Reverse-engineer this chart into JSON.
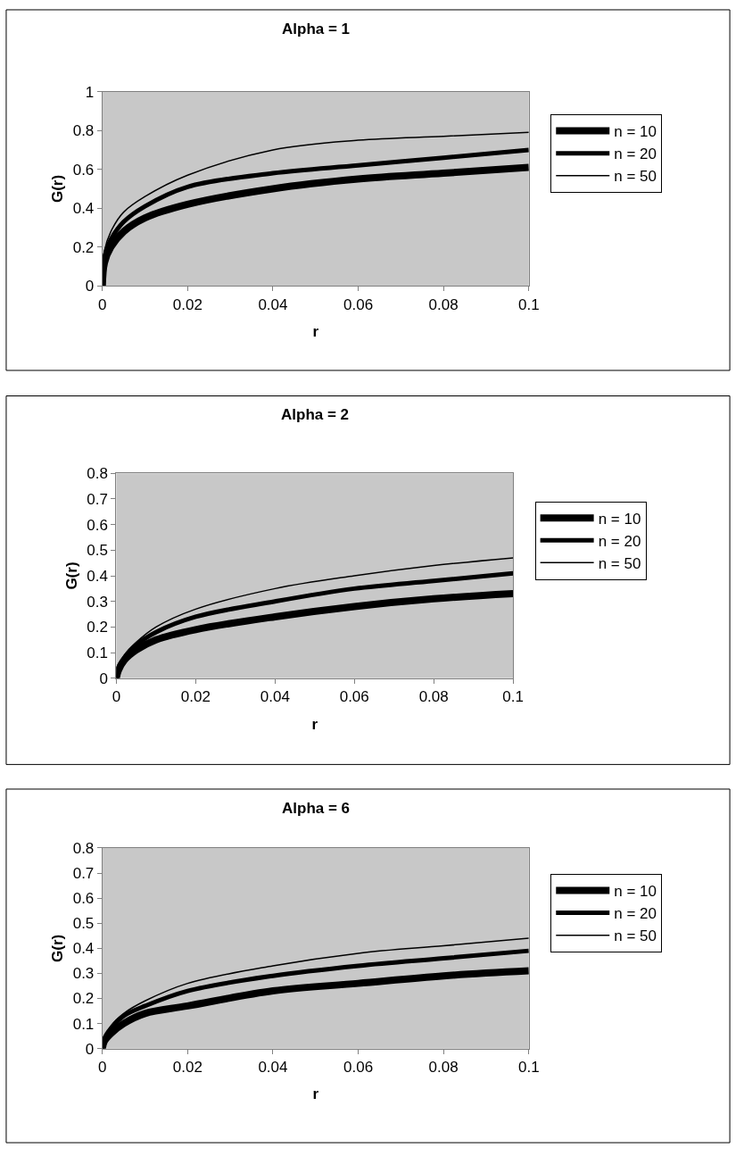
{
  "chart_data": [
    {
      "type": "line",
      "title": "Alpha = 1",
      "xlabel": "r",
      "ylabel": "G(r)",
      "x": [
        0,
        0.0005,
        0.002,
        0.005,
        0.01,
        0.02,
        0.04,
        0.06,
        0.08,
        0.1
      ],
      "xlim": [
        0,
        0.1
      ],
      "xticks": [
        0,
        0.02,
        0.04,
        0.06,
        0.08,
        0.1
      ],
      "ylim": [
        0,
        1
      ],
      "yticks": [
        0,
        0.2,
        0.4,
        0.6,
        0.8,
        1
      ],
      "grid": false,
      "legend": "right",
      "marker": "none",
      "line_style": "solid",
      "series": [
        {
          "name": "n = 10",
          "color": "#000000",
          "values": [
            0,
            0.12,
            0.2,
            0.28,
            0.35,
            0.42,
            0.5,
            0.55,
            0.58,
            0.61
          ]
        },
        {
          "name": "n = 20",
          "color": "#000000",
          "values": [
            0,
            0.15,
            0.24,
            0.33,
            0.41,
            0.51,
            0.58,
            0.62,
            0.66,
            0.7
          ]
        },
        {
          "name": "n = 50",
          "color": "#000000",
          "values": [
            0,
            0.18,
            0.28,
            0.38,
            0.46,
            0.57,
            0.7,
            0.75,
            0.77,
            0.79
          ]
        }
      ]
    },
    {
      "type": "line",
      "title": "Alpha = 2",
      "xlabel": "r",
      "ylabel": "G(r)",
      "x": [
        0,
        0.0005,
        0.002,
        0.005,
        0.01,
        0.02,
        0.04,
        0.06,
        0.08,
        0.1
      ],
      "xlim": [
        0,
        0.1
      ],
      "xticks": [
        0,
        0.02,
        0.04,
        0.06,
        0.08,
        0.1
      ],
      "ylim": [
        0,
        0.8
      ],
      "yticks": [
        0,
        0.1,
        0.2,
        0.3,
        0.4,
        0.5,
        0.6,
        0.7,
        0.8
      ],
      "grid": false,
      "legend": "right",
      "marker": "none",
      "line_style": "solid",
      "series": [
        {
          "name": "n = 10",
          "color": "#000000",
          "values": [
            0,
            0.03,
            0.07,
            0.11,
            0.15,
            0.19,
            0.24,
            0.28,
            0.31,
            0.33
          ]
        },
        {
          "name": "n = 20",
          "color": "#000000",
          "values": [
            0,
            0.04,
            0.08,
            0.13,
            0.18,
            0.24,
            0.3,
            0.35,
            0.38,
            0.41
          ]
        },
        {
          "name": "n = 50",
          "color": "#000000",
          "values": [
            0,
            0.04,
            0.09,
            0.14,
            0.2,
            0.27,
            0.35,
            0.4,
            0.44,
            0.47
          ]
        }
      ]
    },
    {
      "type": "line",
      "title": "Alpha = 6",
      "xlabel": "r",
      "ylabel": "G(r)",
      "x": [
        0,
        0.0005,
        0.002,
        0.005,
        0.01,
        0.02,
        0.04,
        0.06,
        0.08,
        0.1
      ],
      "xlim": [
        0,
        0.1
      ],
      "xticks": [
        0,
        0.02,
        0.04,
        0.06,
        0.08,
        0.1
      ],
      "ylim": [
        0,
        0.8
      ],
      "yticks": [
        0,
        0.1,
        0.2,
        0.3,
        0.4,
        0.5,
        0.6,
        0.7,
        0.8
      ],
      "grid": false,
      "legend": "right",
      "marker": "none",
      "line_style": "solid",
      "series": [
        {
          "name": "n = 10",
          "color": "#000000",
          "values": [
            0,
            0.03,
            0.06,
            0.1,
            0.14,
            0.17,
            0.23,
            0.26,
            0.29,
            0.31
          ]
        },
        {
          "name": "n = 20",
          "color": "#000000",
          "values": [
            0,
            0.04,
            0.08,
            0.13,
            0.17,
            0.23,
            0.29,
            0.33,
            0.36,
            0.39
          ]
        },
        {
          "name": "n = 50",
          "color": "#000000",
          "values": [
            0,
            0.04,
            0.09,
            0.14,
            0.19,
            0.26,
            0.33,
            0.38,
            0.41,
            0.44
          ]
        }
      ]
    }
  ]
}
